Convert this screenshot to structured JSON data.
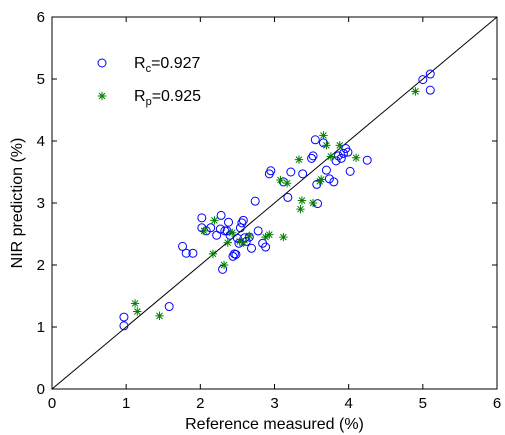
{
  "chart_data": {
    "type": "scatter",
    "xlabel": "Reference measured (%)",
    "ylabel": "NIR prediction (%)",
    "xlim": [
      0,
      6
    ],
    "ylim": [
      0,
      6
    ],
    "xticks": [
      "0",
      "1",
      "2",
      "3",
      "4",
      "5",
      "6"
    ],
    "yticks": [
      "0",
      "1",
      "2",
      "3",
      "4",
      "5",
      "6"
    ],
    "grid": false,
    "legend_position": "top-left",
    "reference_line": {
      "from": [
        0,
        0
      ],
      "to": [
        6,
        6
      ]
    },
    "series": [
      {
        "name": "R",
        "name_sub": "c",
        "name_value": "=0.927",
        "marker": "circle",
        "color": "#0000ff",
        "points": [
          [
            0.97,
            1.16
          ],
          [
            0.97,
            1.02
          ],
          [
            1.58,
            1.33
          ],
          [
            1.76,
            2.3
          ],
          [
            1.81,
            2.19
          ],
          [
            1.9,
            2.19
          ],
          [
            2.02,
            2.76
          ],
          [
            2.02,
            2.6
          ],
          [
            2.08,
            2.55
          ],
          [
            2.14,
            2.6
          ],
          [
            2.22,
            2.48
          ],
          [
            2.27,
            2.58
          ],
          [
            2.28,
            2.8
          ],
          [
            2.3,
            1.93
          ],
          [
            2.33,
            2.55
          ],
          [
            2.36,
            2.55
          ],
          [
            2.38,
            2.69
          ],
          [
            2.4,
            2.48
          ],
          [
            2.44,
            2.14
          ],
          [
            2.46,
            2.18
          ],
          [
            2.48,
            2.17
          ],
          [
            2.5,
            2.43
          ],
          [
            2.52,
            2.35
          ],
          [
            2.54,
            2.6
          ],
          [
            2.56,
            2.68
          ],
          [
            2.58,
            2.72
          ],
          [
            2.6,
            2.44
          ],
          [
            2.62,
            2.38
          ],
          [
            2.66,
            2.45
          ],
          [
            2.69,
            2.27
          ],
          [
            2.74,
            3.03
          ],
          [
            2.78,
            2.55
          ],
          [
            2.84,
            2.35
          ],
          [
            2.88,
            2.29
          ],
          [
            2.93,
            3.47
          ],
          [
            2.95,
            3.52
          ],
          [
            3.12,
            3.34
          ],
          [
            3.18,
            3.09
          ],
          [
            3.22,
            3.5
          ],
          [
            3.38,
            3.47
          ],
          [
            3.5,
            3.72
          ],
          [
            3.52,
            3.76
          ],
          [
            3.55,
            4.02
          ],
          [
            3.57,
            3.3
          ],
          [
            3.58,
            2.99
          ],
          [
            3.66,
            3.97
          ],
          [
            3.7,
            3.53
          ],
          [
            3.74,
            3.39
          ],
          [
            3.8,
            3.34
          ],
          [
            3.83,
            3.68
          ],
          [
            3.86,
            3.76
          ],
          [
            3.9,
            3.72
          ],
          [
            3.93,
            3.8
          ],
          [
            3.96,
            3.88
          ],
          [
            3.99,
            3.82
          ],
          [
            4.02,
            3.51
          ],
          [
            4.25,
            3.69
          ],
          [
            5.0,
            4.99
          ],
          [
            5.1,
            5.08
          ],
          [
            5.1,
            4.82
          ]
        ]
      },
      {
        "name": "R",
        "name_sub": "p",
        "name_value": "=0.925",
        "marker": "asterisk",
        "color": "#008000",
        "points": [
          [
            1.12,
            1.38
          ],
          [
            1.15,
            1.25
          ],
          [
            1.45,
            1.18
          ],
          [
            2.05,
            2.55
          ],
          [
            2.17,
            2.18
          ],
          [
            2.19,
            2.72
          ],
          [
            2.32,
            2.0
          ],
          [
            2.37,
            2.36
          ],
          [
            2.43,
            2.52
          ],
          [
            2.53,
            2.38
          ],
          [
            2.58,
            2.36
          ],
          [
            2.66,
            2.47
          ],
          [
            2.88,
            2.45
          ],
          [
            2.93,
            2.49
          ],
          [
            3.08,
            3.37
          ],
          [
            3.12,
            2.45
          ],
          [
            3.17,
            3.32
          ],
          [
            3.33,
            3.7
          ],
          [
            3.35,
            2.9
          ],
          [
            3.37,
            3.04
          ],
          [
            3.52,
            3.0
          ],
          [
            3.61,
            3.35
          ],
          [
            3.63,
            3.38
          ],
          [
            3.66,
            4.09
          ],
          [
            3.7,
            3.93
          ],
          [
            3.76,
            3.75
          ],
          [
            3.88,
            3.93
          ],
          [
            4.1,
            3.73
          ],
          [
            4.9,
            4.8
          ]
        ]
      }
    ]
  }
}
